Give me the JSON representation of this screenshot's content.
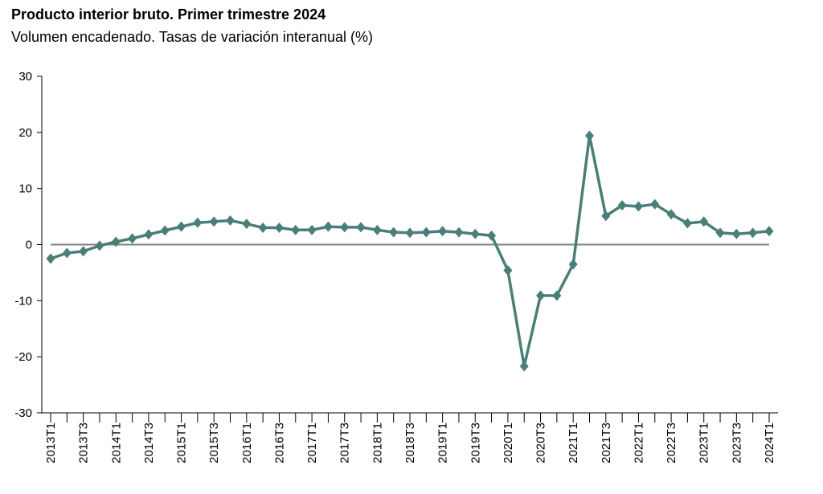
{
  "chart_data": {
    "type": "line",
    "title": "Producto interior bruto. Primer trimestre 2024",
    "subtitle": "Volumen encadenado. Tasas de variación interanual (%)",
    "xlabel": "",
    "ylabel": "",
    "ylim": [
      -30,
      30
    ],
    "yticks": [
      30,
      20,
      10,
      0,
      -10,
      -20,
      -30
    ],
    "grid": false,
    "legend": "none",
    "colors": {
      "series": "#4a7f77",
      "zero_line": "#808080",
      "axis": "#000000"
    },
    "categories": [
      "2013T1",
      "2013T2",
      "2013T3",
      "2013T4",
      "2014T1",
      "2014T2",
      "2014T3",
      "2014T4",
      "2015T1",
      "2015T2",
      "2015T3",
      "2015T4",
      "2016T1",
      "2016T2",
      "2016T3",
      "2016T4",
      "2017T1",
      "2017T2",
      "2017T3",
      "2017T4",
      "2018T1",
      "2018T2",
      "2018T3",
      "2018T4",
      "2019T1",
      "2019T2",
      "2019T3",
      "2019T4",
      "2020T1",
      "2020T2",
      "2020T3",
      "2020T4",
      "2021T1",
      "2021T2",
      "2021T3",
      "2021T4",
      "2022T1",
      "2022T2",
      "2022T3",
      "2022T4",
      "2023T1",
      "2023T2",
      "2023T3",
      "2023T4",
      "2024T1"
    ],
    "tick_labels": [
      "2013T1",
      "2013T3",
      "2014T1",
      "2014T3",
      "2015T1",
      "2015T3",
      "2016T1",
      "2016T3",
      "2017T1",
      "2017T3",
      "2018T1",
      "2018T3",
      "2019T1",
      "2019T3",
      "2020T1",
      "2020T3",
      "2021T1",
      "2021T3",
      "2022T1",
      "2022T3",
      "2023T1",
      "2023T3",
      "2024T1"
    ],
    "series": [
      {
        "values": [
          -2.5,
          -1.5,
          -1.2,
          -0.2,
          0.5,
          1.1,
          1.8,
          2.5,
          3.2,
          3.9,
          4.1,
          4.3,
          3.7,
          3.0,
          3.0,
          2.6,
          2.6,
          3.2,
          3.1,
          3.1,
          2.6,
          2.2,
          2.1,
          2.2,
          2.4,
          2.2,
          1.9,
          1.6,
          -4.6,
          -21.7,
          -9.1,
          -9.1,
          -3.5,
          19.4,
          5.1,
          7.0,
          6.8,
          7.2,
          5.4,
          3.8,
          4.1,
          2.1,
          1.9,
          2.1,
          2.4
        ]
      }
    ]
  }
}
